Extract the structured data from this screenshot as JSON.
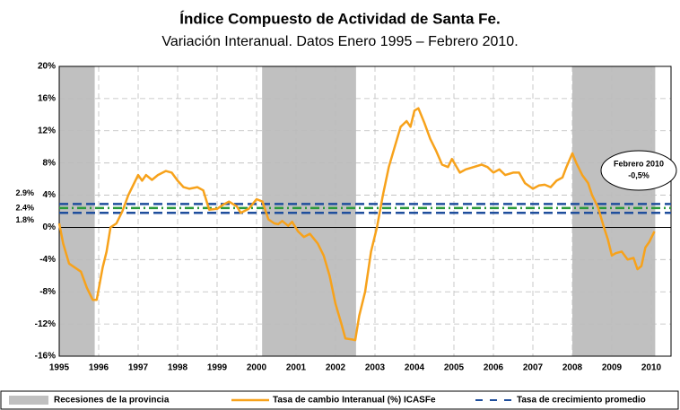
{
  "chart_data": {
    "type": "line",
    "title": "Índice Compuesto de Actividad de Santa Fe.",
    "subtitle": "Variación Interanual. Datos Enero 1995 – Febrero 2010.",
    "xlim": [
      1995,
      2010.5
    ],
    "xticks": [
      1995,
      1996,
      1997,
      1998,
      1999,
      2000,
      2001,
      2002,
      2003,
      2004,
      2005,
      2006,
      2007,
      2008,
      2009,
      2010
    ],
    "ylim": [
      -16,
      20
    ],
    "yticks": [
      {
        "value": 20,
        "label": "20%"
      },
      {
        "value": 16,
        "label": "16%"
      },
      {
        "value": 12,
        "label": "12%"
      },
      {
        "value": 8,
        "label": "8%"
      },
      {
        "value": 4,
        "label": "4%"
      },
      {
        "value": 0,
        "label": "0%"
      },
      {
        "value": -4,
        "label": "-4%"
      },
      {
        "value": -8,
        "label": "-8%"
      },
      {
        "value": -12,
        "label": "-12%"
      },
      {
        "value": -16,
        "label": "-16%"
      }
    ],
    "grid": true,
    "recessions": {
      "name": "Recesiones de la provincia",
      "color": "#c0c0c0",
      "periods": [
        [
          1995,
          1995.9
        ],
        [
          2000.14,
          2002.52
        ],
        [
          2008,
          2010.1
        ]
      ]
    },
    "series": [
      {
        "name": "Tasa de cambio Interanual (%) ICASFe",
        "color": "#f7a21b",
        "x": [
          1995.0,
          1995.1,
          1995.25,
          1995.4,
          1995.55,
          1995.7,
          1995.85,
          1995.95,
          1996.1,
          1996.2,
          1996.3,
          1996.45,
          1996.6,
          1996.75,
          1996.9,
          1997.0,
          1997.1,
          1997.2,
          1997.35,
          1997.5,
          1997.7,
          1997.85,
          1998.0,
          1998.15,
          1998.3,
          1998.5,
          1998.65,
          1998.8,
          1999.0,
          1999.15,
          1999.3,
          1999.5,
          1999.6,
          1999.8,
          2000.0,
          2000.15,
          2000.3,
          2000.45,
          2000.55,
          2000.65,
          2000.8,
          2000.9,
          2001.05,
          2001.2,
          2001.35,
          2001.55,
          2001.7,
          2001.85,
          2002.0,
          2002.15,
          2002.25,
          2002.4,
          2002.5,
          2002.6,
          2002.75,
          2002.9,
          2003.05,
          2003.2,
          2003.35,
          2003.5,
          2003.65,
          2003.8,
          2003.9,
          2004.0,
          2004.1,
          2004.25,
          2004.4,
          2004.55,
          2004.7,
          2004.85,
          2004.95,
          2005.15,
          2005.3,
          2005.5,
          2005.7,
          2005.85,
          2006.0,
          2006.15,
          2006.3,
          2006.5,
          2006.65,
          2006.8,
          2007.0,
          2007.15,
          2007.3,
          2007.45,
          2007.6,
          2007.75,
          2007.85,
          2008.0,
          2008.1,
          2008.25,
          2008.4,
          2008.5,
          2008.65,
          2008.8,
          2008.9,
          2009.0,
          2009.1,
          2009.25,
          2009.4,
          2009.55,
          2009.65,
          2009.75,
          2009.85,
          2009.95,
          2010.08
        ],
        "values": [
          0.5,
          -2,
          -4.5,
          -5,
          -5.5,
          -7.5,
          -9,
          -9,
          -5,
          -3,
          0,
          0.5,
          2,
          4,
          5.5,
          6.5,
          5.8,
          6.5,
          5.9,
          6.5,
          7.0,
          6.8,
          5.8,
          5.0,
          4.8,
          5.0,
          4.6,
          2.2,
          2.3,
          2.8,
          3.2,
          2.6,
          1.8,
          2.3,
          3.5,
          3.2,
          1.0,
          0.5,
          0.4,
          0.8,
          0.2,
          0.7,
          -0.5,
          -1.2,
          -0.8,
          -2,
          -3.5,
          -6,
          -9.5,
          -12,
          -13.8,
          -13.9,
          -14,
          -11,
          -8,
          -3,
          0,
          4,
          7.5,
          10,
          12.5,
          13.2,
          12.5,
          14.5,
          14.8,
          13,
          11,
          9.5,
          7.8,
          7.5,
          8.5,
          6.8,
          7.2,
          7.5,
          7.8,
          7.5,
          6.8,
          7.2,
          6.5,
          6.8,
          6.8,
          5.5,
          4.8,
          5.2,
          5.3,
          5.0,
          5.8,
          6.2,
          7.5,
          9.2,
          8.0,
          6.5,
          5.5,
          4.0,
          2.5,
          0,
          -1.5,
          -3.5,
          -3.2,
          -3.0,
          -4,
          -3.8,
          -5.2,
          -4.8,
          -2.5,
          -1.8,
          -0.5
        ]
      }
    ],
    "averages": {
      "name": "Tasa de crecimiento promedio",
      "colors": [
        "#1f4e9c",
        "#2a9a3a",
        "#1f4e9c"
      ],
      "values": [
        2.9,
        2.4,
        1.8
      ],
      "value_labels": [
        "2.9%",
        "2.4%",
        "1.8%"
      ]
    },
    "annotation": [
      "Febrero 2010",
      "-0,5%"
    ]
  }
}
